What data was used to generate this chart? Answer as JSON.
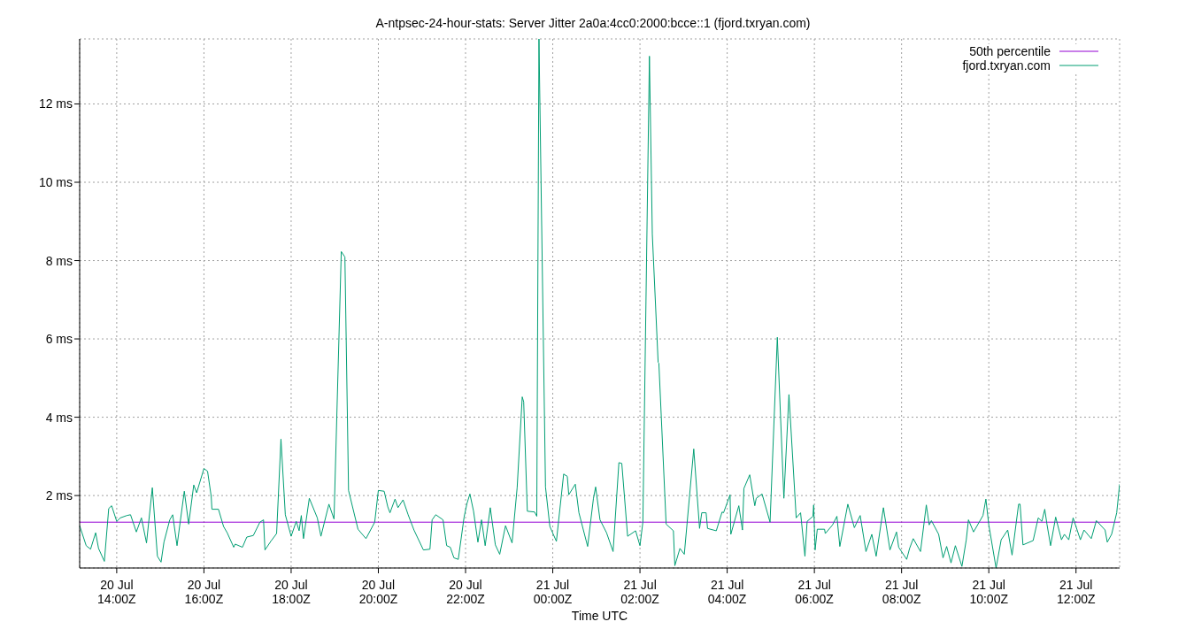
{
  "chart_data": {
    "type": "line",
    "title": "A-ntpsec-24-hour-stats: Server Jitter 2a0a:4cc0:2000:bcce::1 (fjord.txryan.com)",
    "xlabel": "Time UTC",
    "xlim": [
      "--07-20T13:09",
      "--07-21T13:00"
    ],
    "ylim": [
      0.15,
      13.66
    ],
    "xticks": [
      {
        "value": "--07-20T14:00",
        "label": "20 Jul\n14:00Z"
      },
      {
        "value": "--07-20T16:00",
        "label": "20 Jul\n16:00Z"
      },
      {
        "value": "--07-20T18:00",
        "label": "20 Jul\n18:00Z"
      },
      {
        "value": "--07-20T20:00",
        "label": "20 Jul\n20:00Z"
      },
      {
        "value": "--07-20T22:00",
        "label": "20 Jul\n22:00Z"
      },
      {
        "value": "--07-21T00:00",
        "label": "21 Jul\n00:00Z"
      },
      {
        "value": "--07-21T02:00",
        "label": "21 Jul\n02:00Z"
      },
      {
        "value": "--07-21T04:00",
        "label": "21 Jul\n04:00Z"
      },
      {
        "value": "--07-21T06:00",
        "label": "21 Jul\n06:00Z"
      },
      {
        "value": "--07-21T08:00",
        "label": "21 Jul\n08:00Z"
      },
      {
        "value": "--07-21T10:00",
        "label": "21 Jul\n10:00Z"
      },
      {
        "value": "--07-21T12:00",
        "label": "21 Jul\n12:00Z"
      }
    ],
    "yticks": [
      {
        "value": 2,
        "label": "2 ms"
      },
      {
        "value": 4,
        "label": "4 ms"
      },
      {
        "value": 6,
        "label": "6 ms"
      },
      {
        "value": 8,
        "label": "8 ms"
      },
      {
        "value": 10,
        "label": "10 ms"
      },
      {
        "value": 12,
        "label": "12 ms"
      }
    ],
    "grid": true,
    "legend": "top right",
    "marker": "none",
    "line_style": "solid",
    "series": [
      {
        "name": "50th percentile",
        "color": "#9400d3",
        "x": [
          "--07-20T13:09",
          "--07-21T13:00"
        ],
        "values": [
          1.32,
          1.32
        ]
      },
      {
        "name": "fjord.txryan.com",
        "color": "#009e73",
        "x": [
          "--07-20T13:09",
          "--07-20T13:18",
          "--07-20T13:24",
          "--07-20T13:31",
          "--07-20T13:35",
          "--07-20T13:43",
          "--07-20T13:49",
          "--07-20T13:53",
          "--07-20T14:00",
          "--07-20T14:05",
          "--07-20T14:14",
          "--07-20T14:19",
          "--07-20T14:27",
          "--07-20T14:34",
          "--07-20T14:41",
          "--07-20T14:49",
          "--07-20T14:56",
          "--07-20T15:01",
          "--07-20T15:05",
          "--07-20T15:13",
          "--07-20T15:17",
          "--07-20T15:23",
          "--07-20T15:33",
          "--07-20T15:39",
          "--07-20T15:46",
          "--07-20T15:50",
          "--07-20T16:00",
          "--07-20T16:05",
          "--07-20T16:10",
          "--07-20T16:11",
          "--07-20T16:20",
          "--07-20T16:27",
          "--07-20T16:32",
          "--07-20T16:41",
          "--07-20T16:43",
          "--07-20T16:53",
          "--07-20T16:59",
          "--07-20T17:08",
          "--07-20T17:17",
          "--07-20T17:22",
          "--07-20T17:24",
          "--07-20T17:32",
          "--07-20T17:40",
          "--07-20T17:46",
          "--07-20T17:52",
          "--07-20T18:00",
          "--07-20T18:07",
          "--07-20T18:11",
          "--07-20T18:14",
          "--07-20T18:17",
          "--07-20T18:25",
          "--07-20T18:36",
          "--07-20T18:41",
          "--07-20T18:52",
          "--07-20T18:59",
          "--07-20T19:09",
          "--07-20T19:14",
          "--07-20T19:19",
          "--07-20T19:32",
          "--07-20T19:43",
          "--07-20T19:55",
          "--07-20T20:00",
          "--07-20T20:08",
          "--07-20T20:13",
          "--07-20T20:16",
          "--07-20T20:23",
          "--07-20T20:27",
          "--07-20T20:34",
          "--07-20T20:41",
          "--07-20T20:49",
          "--07-20T21:02",
          "--07-20T21:11",
          "--07-20T21:14",
          "--07-20T21:19",
          "--07-20T21:29",
          "--07-20T21:34",
          "--07-20T21:39",
          "--07-20T21:44",
          "--07-20T21:50",
          "--07-20T21:58",
          "--07-20T22:02",
          "--07-20T22:06",
          "--07-20T22:11",
          "--07-20T22:17",
          "--07-20T22:22",
          "--07-20T22:27",
          "--07-20T22:34",
          "--07-20T22:41",
          "--07-20T22:47",
          "--07-20T22:55",
          "--07-20T23:04",
          "--07-20T23:11",
          "--07-20T23:18",
          "--07-20T23:20",
          "--07-20T23:25",
          "--07-20T23:35",
          "--07-20T23:38",
          "--07-20T23:41",
          "--07-20T23:50",
          "--07-20T23:56",
          "--07-21T00:05",
          "--07-21T00:15",
          "--07-21T00:20",
          "--07-21T00:22",
          "--07-21T00:31",
          "--07-21T00:36",
          "--07-21T00:48",
          "--07-21T00:56",
          "--07-21T00:59",
          "--07-21T01:05",
          "--07-21T01:14",
          "--07-21T01:23",
          "--07-21T01:31",
          "--07-21T01:35",
          "--07-21T01:43",
          "--07-21T01:54",
          "--07-21T02:00",
          "--07-21T02:04",
          "--07-21T02:13",
          "--07-21T02:17",
          "--07-21T02:25",
          "--07-21T02:26",
          "--07-21T02:36",
          "--07-21T02:46",
          "--07-21T02:48",
          "--07-21T02:55",
          "--07-21T03:01",
          "--07-21T03:14",
          "--07-21T03:22",
          "--07-21T03:25",
          "--07-21T03:31",
          "--07-21T03:33",
          "--07-21T03:45",
          "--07-21T03:53",
          "--07-21T03:55",
          "--07-21T04:04",
          "--07-21T04:05",
          "--07-21T04:16",
          "--07-21T04:21",
          "--07-21T04:23",
          "--07-21T04:31",
          "--07-21T04:38",
          "--07-21T04:40",
          "--07-21T04:48",
          "--07-21T04:59",
          "--07-21T05:09",
          "--07-21T05:18",
          "--07-21T05:25",
          "--07-21T05:35",
          "--07-21T05:41",
          "--07-21T05:47",
          "--07-21T05:50",
          "--07-21T05:58",
          "--07-21T05:59",
          "--07-21T06:01",
          "--07-21T06:04",
          "--07-21T06:14",
          "--07-21T06:15",
          "--07-21T06:25",
          "--07-21T06:31",
          "--07-21T06:35",
          "--07-21T06:46",
          "--07-21T06:55",
          "--07-21T07:03",
          "--07-21T07:11",
          "--07-21T07:19",
          "--07-21T07:25",
          "--07-21T07:35",
          "--07-21T07:44",
          "--07-21T07:53",
          "--07-21T07:56",
          "--07-21T08:07",
          "--07-21T08:11",
          "--07-21T08:16",
          "--07-21T08:26",
          "--07-21T08:34",
          "--07-21T08:38",
          "--07-21T08:41",
          "--07-21T08:51",
          "--07-21T08:57",
          "--07-21T09:02",
          "--07-21T09:08",
          "--07-21T09:14",
          "--07-21T09:23",
          "--07-21T09:29",
          "--07-21T09:32",
          "--07-21T09:39",
          "--07-21T09:52",
          "--07-21T09:56",
          "--07-21T10:00",
          "--07-21T10:10",
          "--07-21T10:17",
          "--07-21T10:26",
          "--07-21T10:32",
          "--07-21T10:41",
          "--07-21T10:43",
          "--07-21T10:47",
          "--07-21T11:01",
          "--07-21T11:08",
          "--07-21T11:13",
          "--07-21T11:17",
          "--07-21T11:20",
          "--07-21T11:25",
          "--07-21T11:32",
          "--07-21T11:40",
          "--07-21T11:44",
          "--07-21T11:50",
          "--07-21T11:56",
          "--07-21T12:06",
          "--07-21T12:11",
          "--07-21T12:21",
          "--07-21T12:28",
          "--07-21T12:40",
          "--07-21T12:43",
          "--07-21T12:49",
          "--07-21T12:56",
          "--07-21T13:00"
        ],
        "values": [
          1.23,
          0.72,
          0.63,
          1.05,
          0.65,
          0.32,
          1.67,
          1.74,
          1.34,
          1.43,
          1.49,
          1.51,
          1.07,
          1.43,
          0.79,
          2.2,
          0.45,
          0.3,
          0.81,
          1.38,
          1.51,
          0.72,
          2.11,
          1.27,
          2.27,
          2.07,
          2.69,
          2.62,
          1.98,
          1.65,
          1.65,
          1.21,
          1.05,
          0.68,
          0.76,
          0.68,
          0.94,
          0.98,
          1.32,
          1.38,
          0.61,
          0.83,
          1.03,
          3.44,
          1.51,
          0.96,
          1.34,
          1.1,
          1.49,
          0.9,
          1.93,
          1.43,
          0.96,
          1.78,
          1.4,
          8.23,
          8.09,
          2.13,
          1.14,
          0.9,
          1.32,
          2.13,
          2.11,
          1.71,
          1.56,
          1.91,
          1.69,
          1.89,
          1.51,
          1.12,
          0.61,
          0.63,
          1.38,
          1.51,
          1.38,
          0.72,
          0.68,
          0.41,
          0.37,
          1.45,
          1.8,
          2.04,
          1.6,
          0.81,
          1.38,
          0.72,
          1.69,
          0.74,
          0.5,
          1.23,
          0.79,
          2.2,
          4.52,
          4.39,
          1.6,
          1.58,
          1.47,
          13.66,
          2.22,
          1.21,
          0.83,
          2.55,
          2.49,
          2.02,
          2.29,
          1.56,
          0.7,
          1.93,
          2.22,
          1.38,
          1.05,
          0.57,
          2.84,
          2.82,
          0.96,
          1.1,
          0.72,
          1.32,
          13.22,
          8.67,
          5.4,
          5.38,
          1.27,
          1.1,
          0.21,
          0.65,
          0.5,
          3.19,
          1.16,
          1.56,
          1.56,
          1.16,
          1.1,
          1.58,
          1.56,
          2.02,
          1.01,
          1.74,
          1.12,
          2.18,
          2.53,
          1.74,
          1.93,
          2.04,
          1.32,
          6.04,
          1.93,
          4.58,
          1.43,
          1.56,
          0.45,
          1.34,
          1.47,
          1.76,
          0.61,
          1.14,
          1.14,
          1.03,
          1.25,
          1.47,
          0.7,
          1.78,
          1.18,
          1.49,
          0.57,
          1.01,
          0.45,
          1.69,
          0.61,
          1.07,
          0.68,
          0.37,
          0.65,
          0.9,
          0.57,
          1.76,
          1.25,
          1.36,
          1.01,
          0.41,
          0.7,
          0.28,
          0.72,
          0.19,
          0.87,
          1.38,
          1.07,
          1.49,
          1.91,
          1.25,
          0.15,
          0.87,
          1.12,
          0.48,
          1.78,
          1.78,
          0.74,
          0.85,
          1.43,
          1.34,
          1.65,
          1.27,
          0.72,
          1.45,
          0.87,
          1.01,
          0.87,
          1.43,
          0.87,
          1.12,
          0.9,
          1.36,
          1.12,
          0.81,
          1.01,
          1.56,
          2.29
        ]
      }
    ]
  }
}
